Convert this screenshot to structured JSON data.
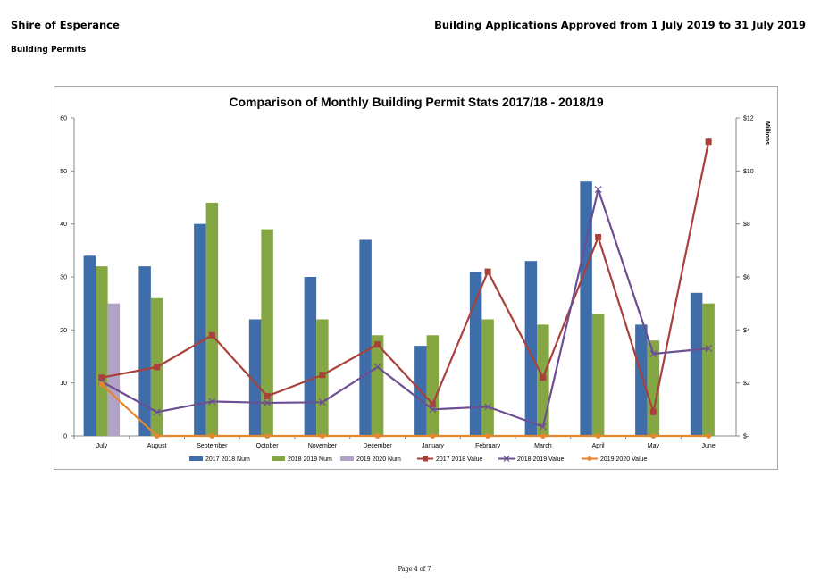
{
  "header": {
    "organisation": "Shire of Esperance",
    "report_title": "Building Applications Approved from 1 July 2019 to 31 July 2019",
    "section": "Building Permits"
  },
  "footer": {
    "page": "Page 4 of 7"
  },
  "chart_data": {
    "type": "bar",
    "title": "Comparison of Monthly Building Permit Stats 2017/18 - 2018/19",
    "categories": [
      "July",
      "August",
      "September",
      "October",
      "November",
      "December",
      "January",
      "February",
      "March",
      "April",
      "May",
      "June"
    ],
    "y_left": {
      "range": [
        0,
        60
      ],
      "ticks": [
        "0",
        "10",
        "20",
        "30",
        "40",
        "50",
        "60"
      ]
    },
    "y_right": {
      "label": "Millions",
      "range": [
        0,
        12
      ],
      "ticks": [
        "$-",
        "$2",
        "$4",
        "$6",
        "$8",
        "$10",
        "$12"
      ]
    },
    "grid": false,
    "legend_position": "bottom",
    "bar_series": [
      {
        "name": "2017 2018 Num",
        "color": "#3e6da9",
        "values": [
          34,
          32,
          40,
          22,
          30,
          37,
          17,
          31,
          33,
          48,
          21,
          27
        ]
      },
      {
        "name": "2018 2019 Num",
        "color": "#84a744",
        "values": [
          32,
          26,
          44,
          39,
          22,
          19,
          19,
          22,
          21,
          23,
          18,
          25
        ]
      },
      {
        "name": "2019 2020 Num",
        "color": "#b3a2c8",
        "values": [
          25,
          null,
          null,
          null,
          null,
          null,
          null,
          null,
          null,
          null,
          null,
          null
        ]
      }
    ],
    "line_series": [
      {
        "name": "2017 2018 Value",
        "color": "#a8413c",
        "marker": "square",
        "values": [
          2.2,
          2.6,
          3.8,
          1.5,
          2.3,
          3.45,
          1.2,
          6.2,
          2.2,
          7.5,
          0.9,
          11.1
        ]
      },
      {
        "name": "2018 2019 Value",
        "color": "#6c4f93",
        "marker": "x",
        "values": [
          2.05,
          0.9,
          1.3,
          1.25,
          1.27,
          2.6,
          1.0,
          1.1,
          0.35,
          9.3,
          3.1,
          3.3
        ]
      },
      {
        "name": "2019 2020 Value",
        "color": "#e6862e",
        "marker": "circle",
        "values": [
          1.95,
          0,
          0,
          0,
          0,
          0,
          0,
          0,
          0,
          0,
          0,
          0
        ]
      }
    ]
  }
}
